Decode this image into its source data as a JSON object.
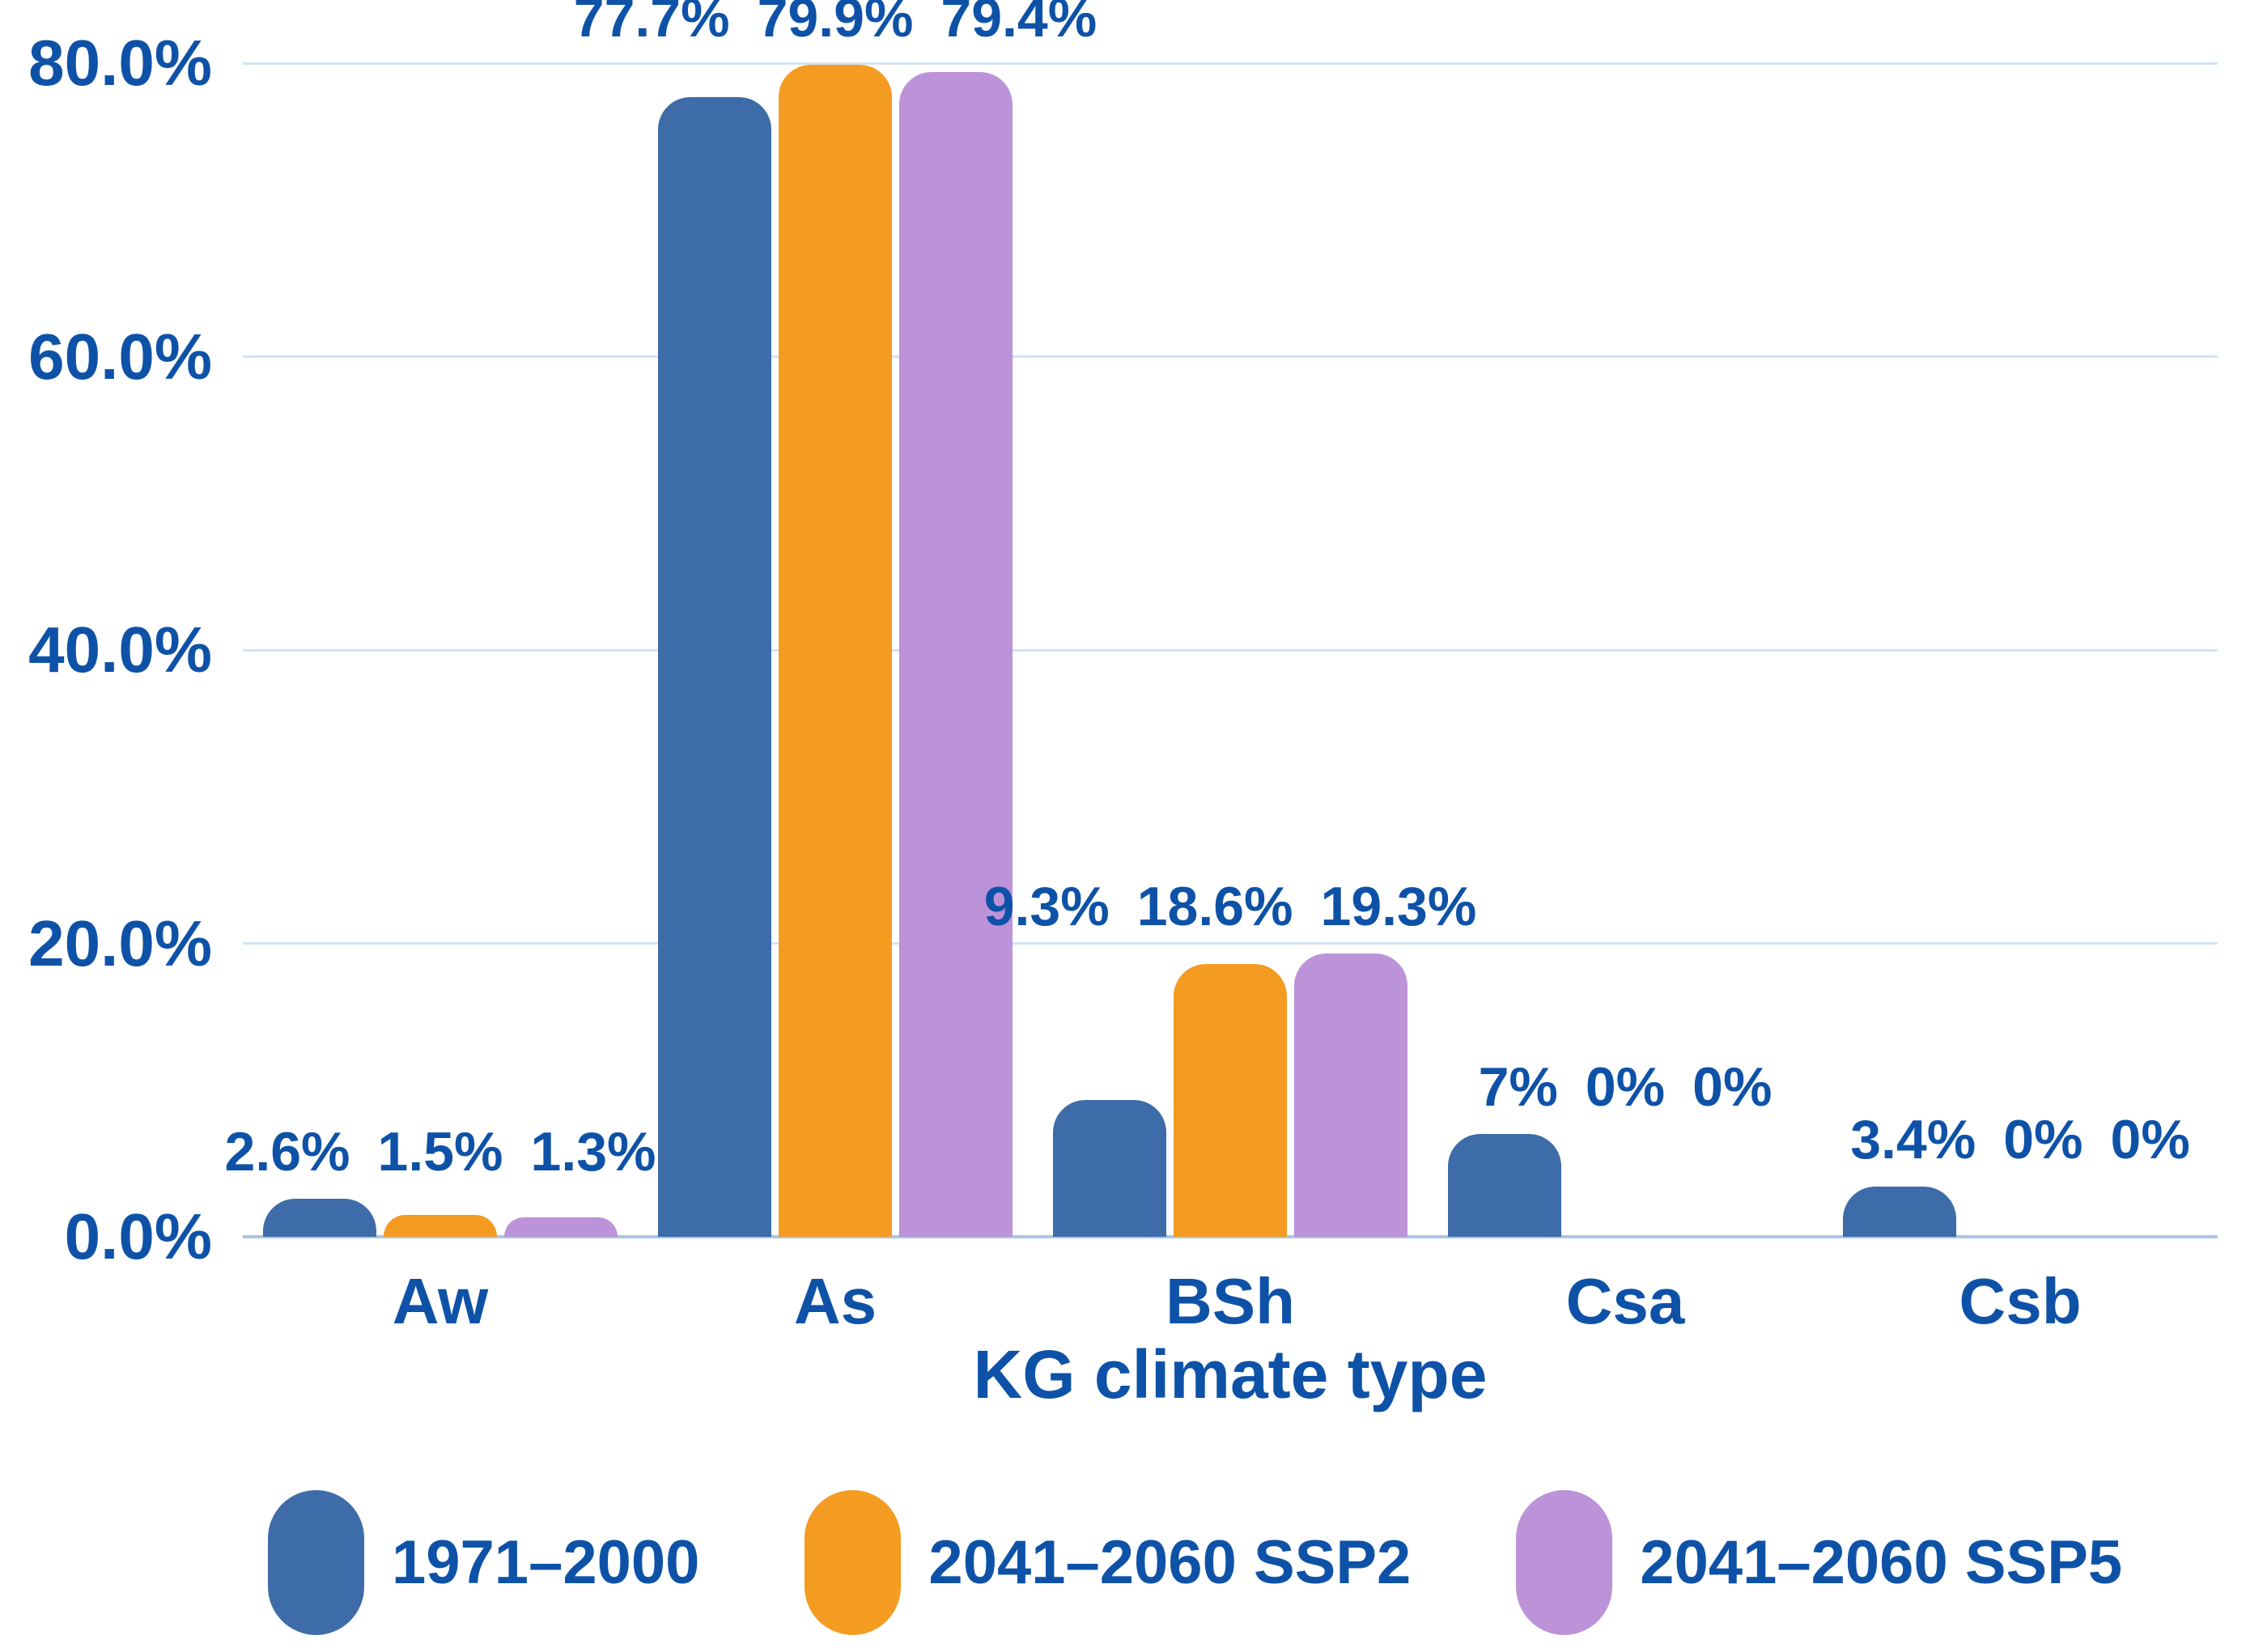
{
  "chart_data": {
    "type": "bar",
    "title": "",
    "xlabel": "KG climate type",
    "ylabel": "",
    "categories": [
      "Aw",
      "As",
      "BSh",
      "Csa",
      "Csb"
    ],
    "series": [
      {
        "name": "1971–2000",
        "color": "#3D6CA8",
        "values": [
          2.6,
          77.7,
          9.3,
          7,
          3.4
        ],
        "value_labels": [
          "2.6%",
          "77.7%",
          "9.3%",
          "7%",
          "3.4%"
        ]
      },
      {
        "name": "2041–2060 SSP2",
        "color": "#F49B21",
        "values": [
          1.5,
          79.9,
          18.6,
          0,
          0
        ],
        "value_labels": [
          "1.5%",
          "79.9%",
          "18.6%",
          "0%",
          "0%"
        ]
      },
      {
        "name": "2041–2060 SSP5",
        "color": "#BC92D8",
        "values": [
          1.3,
          79.4,
          19.3,
          0,
          0
        ],
        "value_labels": [
          "1.3%",
          "79.4%",
          "19.3%",
          "0%",
          "0%"
        ]
      }
    ],
    "ylim": [
      0,
      80
    ],
    "yticks": [
      {
        "value": 0,
        "label": "0.0%"
      },
      {
        "value": 20,
        "label": "20.0%"
      },
      {
        "value": 40,
        "label": "40.0%"
      },
      {
        "value": 60,
        "label": "60.0%"
      },
      {
        "value": 80,
        "label": "80.0%"
      }
    ],
    "grid": true,
    "legend_position": "bottom"
  },
  "style": {
    "text_color": "#0E52A8",
    "gridline_color": "#D5E3F4",
    "axis_line_color": "#A9C6E6",
    "background": "#FFFFFF"
  }
}
